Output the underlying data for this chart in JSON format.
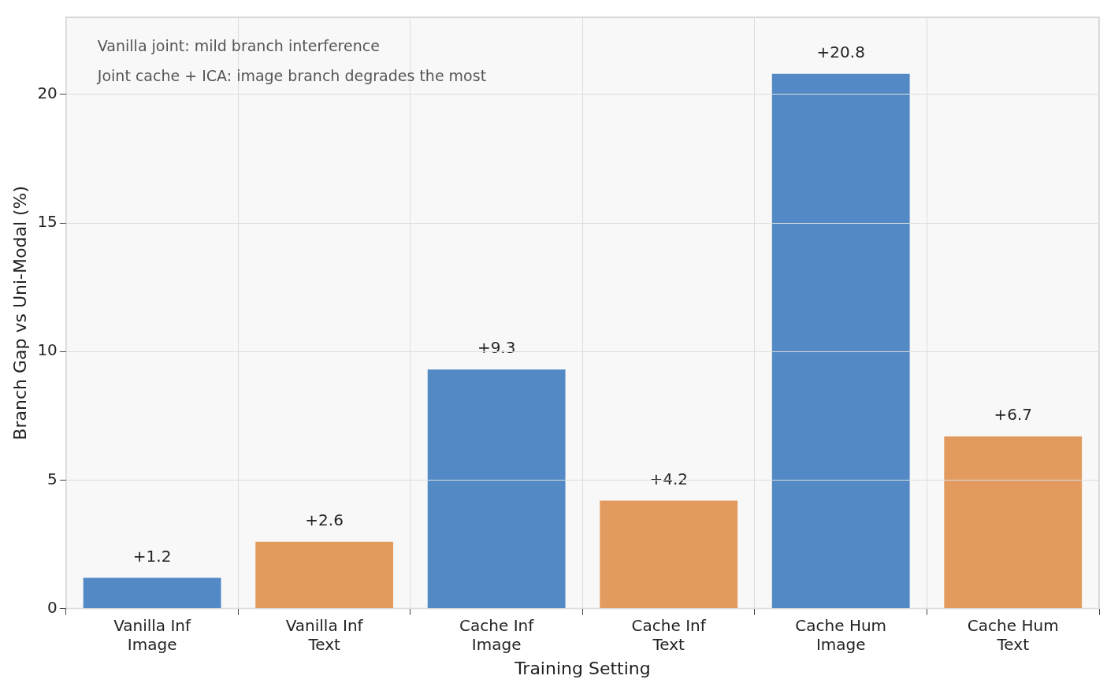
{
  "chart_data": {
    "type": "bar",
    "categories": [
      "Vanilla Inf\nImage",
      "Vanilla Inf\nText",
      "Cache Inf\nImage",
      "Cache Inf\nText",
      "Cache Hum\nImage",
      "Cache Hum\nText"
    ],
    "values": [
      1.2,
      2.6,
      9.3,
      4.2,
      20.8,
      6.7
    ],
    "colors": [
      "#5389c4",
      "#e39a5e",
      "#5389c4",
      "#e39a5e",
      "#5389c4",
      "#e39a5e"
    ],
    "value_labels": [
      "+1.2",
      "+2.6",
      "+9.3",
      "+4.2",
      "+20.8",
      "+6.7"
    ],
    "xlabel": "Training Setting",
    "ylabel": "Branch Gap vs Uni-Modal (%)",
    "ylim": [
      0,
      23
    ],
    "yticks": [
      0,
      5,
      10,
      15,
      20
    ],
    "annotations": [
      "Vanilla joint: mild branch interference",
      "Joint cache + ICA: image branch degrades the most"
    ],
    "grid": true,
    "legend": false
  }
}
